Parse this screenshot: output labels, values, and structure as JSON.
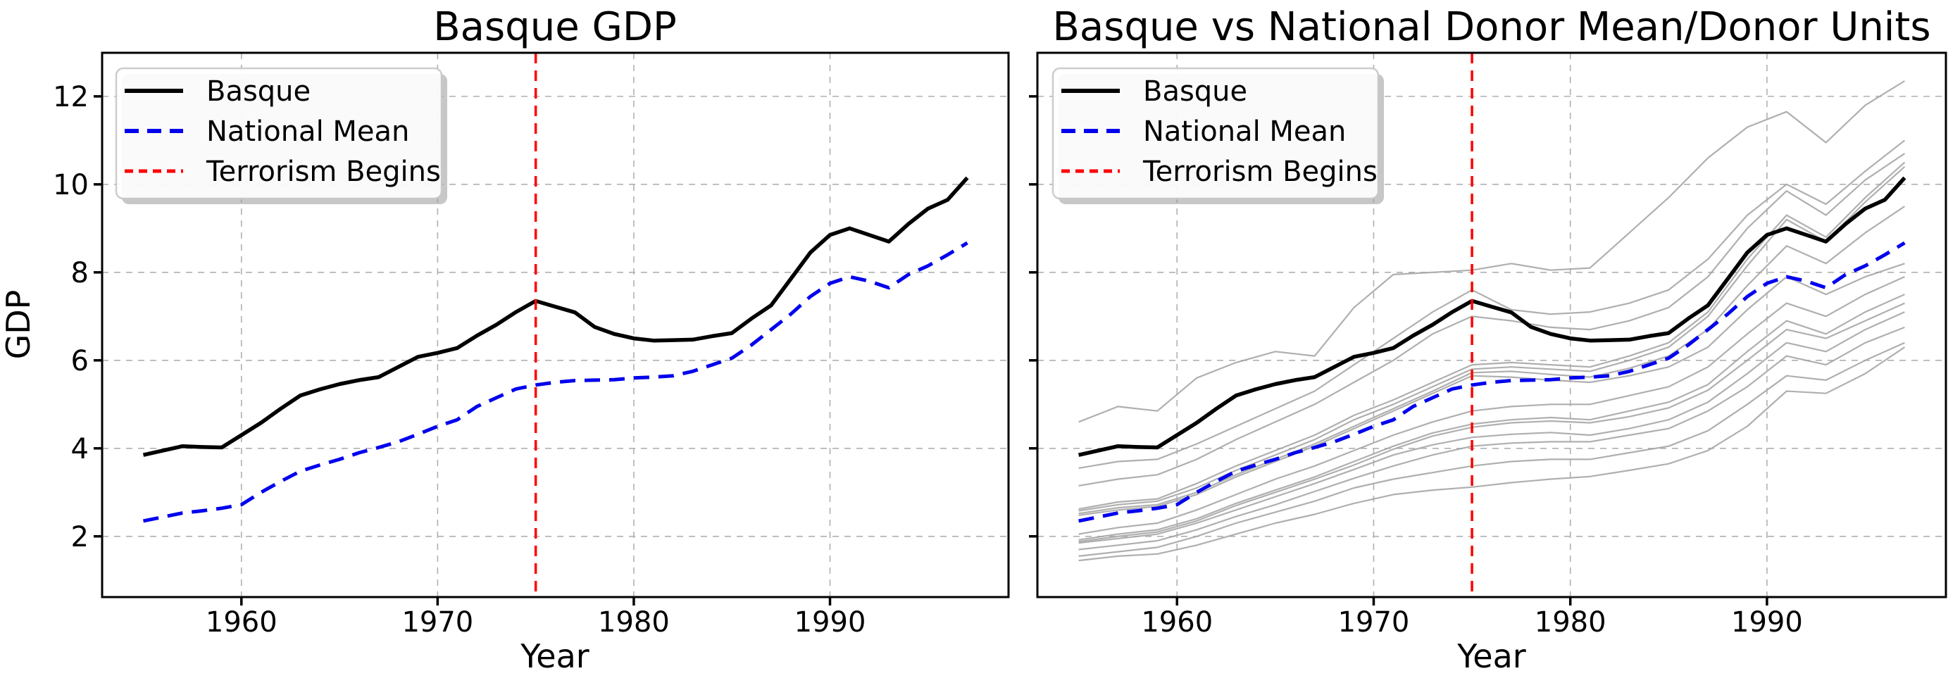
{
  "figure": {
    "background": "#ffffff",
    "left_panel_title": "Basque GDP",
    "right_panel_title": "Basque vs National Donor Mean/Donor Units"
  },
  "chart_data": {
    "type": "line",
    "xlabel": "Year",
    "ylabel": "GDP",
    "xlim": [
      1952.9,
      1999.1
    ],
    "ylim": [
      0.62,
      12.99
    ],
    "xticks": [
      1960,
      1970,
      1980,
      1990
    ],
    "yticks": [
      2,
      4,
      6,
      8,
      10,
      12
    ],
    "grid": true,
    "legend": {
      "position": "upper left",
      "entries": [
        "Basque",
        "National Mean",
        "Terrorism Begins"
      ]
    },
    "terrorism_begins_year": 1975,
    "years": [
      1955,
      1956,
      1957,
      1958,
      1959,
      1960,
      1961,
      1962,
      1963,
      1964,
      1965,
      1966,
      1967,
      1968,
      1969,
      1970,
      1971,
      1972,
      1973,
      1974,
      1975,
      1976,
      1977,
      1978,
      1979,
      1980,
      1981,
      1982,
      1983,
      1984,
      1985,
      1986,
      1987,
      1988,
      1989,
      1990,
      1991,
      1992,
      1993,
      1994,
      1995,
      1996,
      1997
    ],
    "series": [
      {
        "name": "Basque",
        "style": "solid",
        "values": [
          3.85,
          3.95,
          4.05,
          4.03,
          4.02,
          4.3,
          4.58,
          4.9,
          5.2,
          5.34,
          5.46,
          5.55,
          5.62,
          5.85,
          6.08,
          6.17,
          6.28,
          6.56,
          6.81,
          7.1,
          7.35,
          7.22,
          7.09,
          6.76,
          6.6,
          6.5,
          6.45,
          6.46,
          6.47,
          6.55,
          6.62,
          6.95,
          7.25,
          7.85,
          8.45,
          8.85,
          9.0,
          8.85,
          8.7,
          9.1,
          9.45,
          9.65,
          10.15
        ]
      },
      {
        "name": "National Mean",
        "style": "dashed",
        "values": [
          2.35,
          2.44,
          2.53,
          2.58,
          2.64,
          2.72,
          3.0,
          3.25,
          3.48,
          3.62,
          3.75,
          3.9,
          4.02,
          4.15,
          4.32,
          4.5,
          4.65,
          4.95,
          5.15,
          5.35,
          5.44,
          5.5,
          5.54,
          5.55,
          5.56,
          5.6,
          5.62,
          5.65,
          5.75,
          5.9,
          6.05,
          6.35,
          6.7,
          7.05,
          7.45,
          7.75,
          7.9,
          7.8,
          7.65,
          7.95,
          8.15,
          8.4,
          8.67
        ]
      }
    ],
    "donor_years": [
      1955,
      1957,
      1959,
      1961,
      1963,
      1965,
      1967,
      1969,
      1971,
      1973,
      1975,
      1977,
      1979,
      1981,
      1983,
      1985,
      1987,
      1989,
      1991,
      1993,
      1995,
      1997
    ],
    "donor_units": [
      [
        4.6,
        4.95,
        4.85,
        5.6,
        5.95,
        6.2,
        6.1,
        7.2,
        7.95,
        8.0,
        8.05,
        8.2,
        8.05,
        8.1,
        8.9,
        9.7,
        10.6,
        11.3,
        11.65,
        10.95,
        11.8,
        12.35
      ],
      [
        3.55,
        3.7,
        3.75,
        4.1,
        4.5,
        4.9,
        5.3,
        5.9,
        6.5,
        7.1,
        7.6,
        7.15,
        7.05,
        7.1,
        7.3,
        7.6,
        8.3,
        9.3,
        10.0,
        9.55,
        10.3,
        11.0
      ],
      [
        3.15,
        3.3,
        3.4,
        3.75,
        4.2,
        4.6,
        5.0,
        5.5,
        6.0,
        6.6,
        7.0,
        6.9,
        6.75,
        6.7,
        6.9,
        7.2,
        7.9,
        9.0,
        9.85,
        9.3,
        10.1,
        10.7
      ],
      [
        2.62,
        2.78,
        2.85,
        3.2,
        3.6,
        3.95,
        4.3,
        4.75,
        5.1,
        5.5,
        5.9,
        5.95,
        5.9,
        5.85,
        6.1,
        6.4,
        7.1,
        8.3,
        9.3,
        8.8,
        9.7,
        10.5
      ],
      [
        2.58,
        2.72,
        2.8,
        3.1,
        3.5,
        3.85,
        4.2,
        4.65,
        5.0,
        5.4,
        5.8,
        5.85,
        5.8,
        5.75,
        6.0,
        6.3,
        7.0,
        8.15,
        9.2,
        8.7,
        9.6,
        10.4
      ],
      [
        2.52,
        2.65,
        2.72,
        3.0,
        3.4,
        3.75,
        4.1,
        4.5,
        4.9,
        5.3,
        5.72,
        5.75,
        5.68,
        5.62,
        5.82,
        6.1,
        6.7,
        7.7,
        8.6,
        8.2,
        8.9,
        9.5
      ],
      [
        2.48,
        2.6,
        2.68,
        2.95,
        3.35,
        3.7,
        4.05,
        4.45,
        4.85,
        5.25,
        5.65,
        5.62,
        5.55,
        5.5,
        5.65,
        5.85,
        6.3,
        7.15,
        7.9,
        7.5,
        7.9,
        8.2
      ],
      [
        2.05,
        2.2,
        2.3,
        2.6,
        2.95,
        3.3,
        3.6,
        3.95,
        4.3,
        4.6,
        4.85,
        4.95,
        5.0,
        5.0,
        5.2,
        5.4,
        5.85,
        6.6,
        7.3,
        7.0,
        7.5,
        7.9
      ],
      [
        1.92,
        2.05,
        2.15,
        2.4,
        2.75,
        3.05,
        3.35,
        3.7,
        4.05,
        4.35,
        4.55,
        4.65,
        4.7,
        4.65,
        4.85,
        5.05,
        5.45,
        6.2,
        6.9,
        6.6,
        7.1,
        7.5
      ],
      [
        1.88,
        2.0,
        2.1,
        2.35,
        2.7,
        3.0,
        3.3,
        3.62,
        3.98,
        4.28,
        4.48,
        4.58,
        4.62,
        4.58,
        4.72,
        4.92,
        5.32,
        6.0,
        6.7,
        6.5,
        6.9,
        7.3
      ],
      [
        1.85,
        1.95,
        2.05,
        2.3,
        2.6,
        2.9,
        3.2,
        3.52,
        3.85,
        4.08,
        4.25,
        4.32,
        4.36,
        4.3,
        4.45,
        4.65,
        5.05,
        5.7,
        6.4,
        6.2,
        6.7,
        7.1
      ],
      [
        1.7,
        1.8,
        1.9,
        2.15,
        2.45,
        2.72,
        3.02,
        3.32,
        3.6,
        3.85,
        4.05,
        4.12,
        4.15,
        4.15,
        4.3,
        4.45,
        4.85,
        5.4,
        6.1,
        5.9,
        6.4,
        6.75
      ],
      [
        1.55,
        1.65,
        1.75,
        2.0,
        2.3,
        2.55,
        2.8,
        3.1,
        3.3,
        3.45,
        3.6,
        3.7,
        3.75,
        3.75,
        3.9,
        4.05,
        4.4,
        5.0,
        5.65,
        5.55,
        6.0,
        6.4
      ],
      [
        1.45,
        1.55,
        1.6,
        1.8,
        2.05,
        2.3,
        2.5,
        2.75,
        2.95,
        3.05,
        3.12,
        3.22,
        3.3,
        3.36,
        3.5,
        3.65,
        3.95,
        4.5,
        5.3,
        5.25,
        5.7,
        6.3
      ]
    ],
    "panels": [
      {
        "title": "Basque GDP",
        "xlabel": "Year",
        "ylabel": "GDP",
        "show_donors": false,
        "show_ytick_labels": true
      },
      {
        "title": "Basque vs National Donor Mean/Donor Units",
        "xlabel": "Year",
        "ylabel": "",
        "show_donors": true,
        "show_ytick_labels": false
      }
    ],
    "colors": {
      "basque": "#000000",
      "national_mean": "#0000ee",
      "terrorism": "#ff0000",
      "donor": "#a6a6a6",
      "grid": "#b0b0b0",
      "spine": "#000000",
      "legend_border": "#c9c9c9",
      "legend_shadow": "#999999"
    }
  }
}
